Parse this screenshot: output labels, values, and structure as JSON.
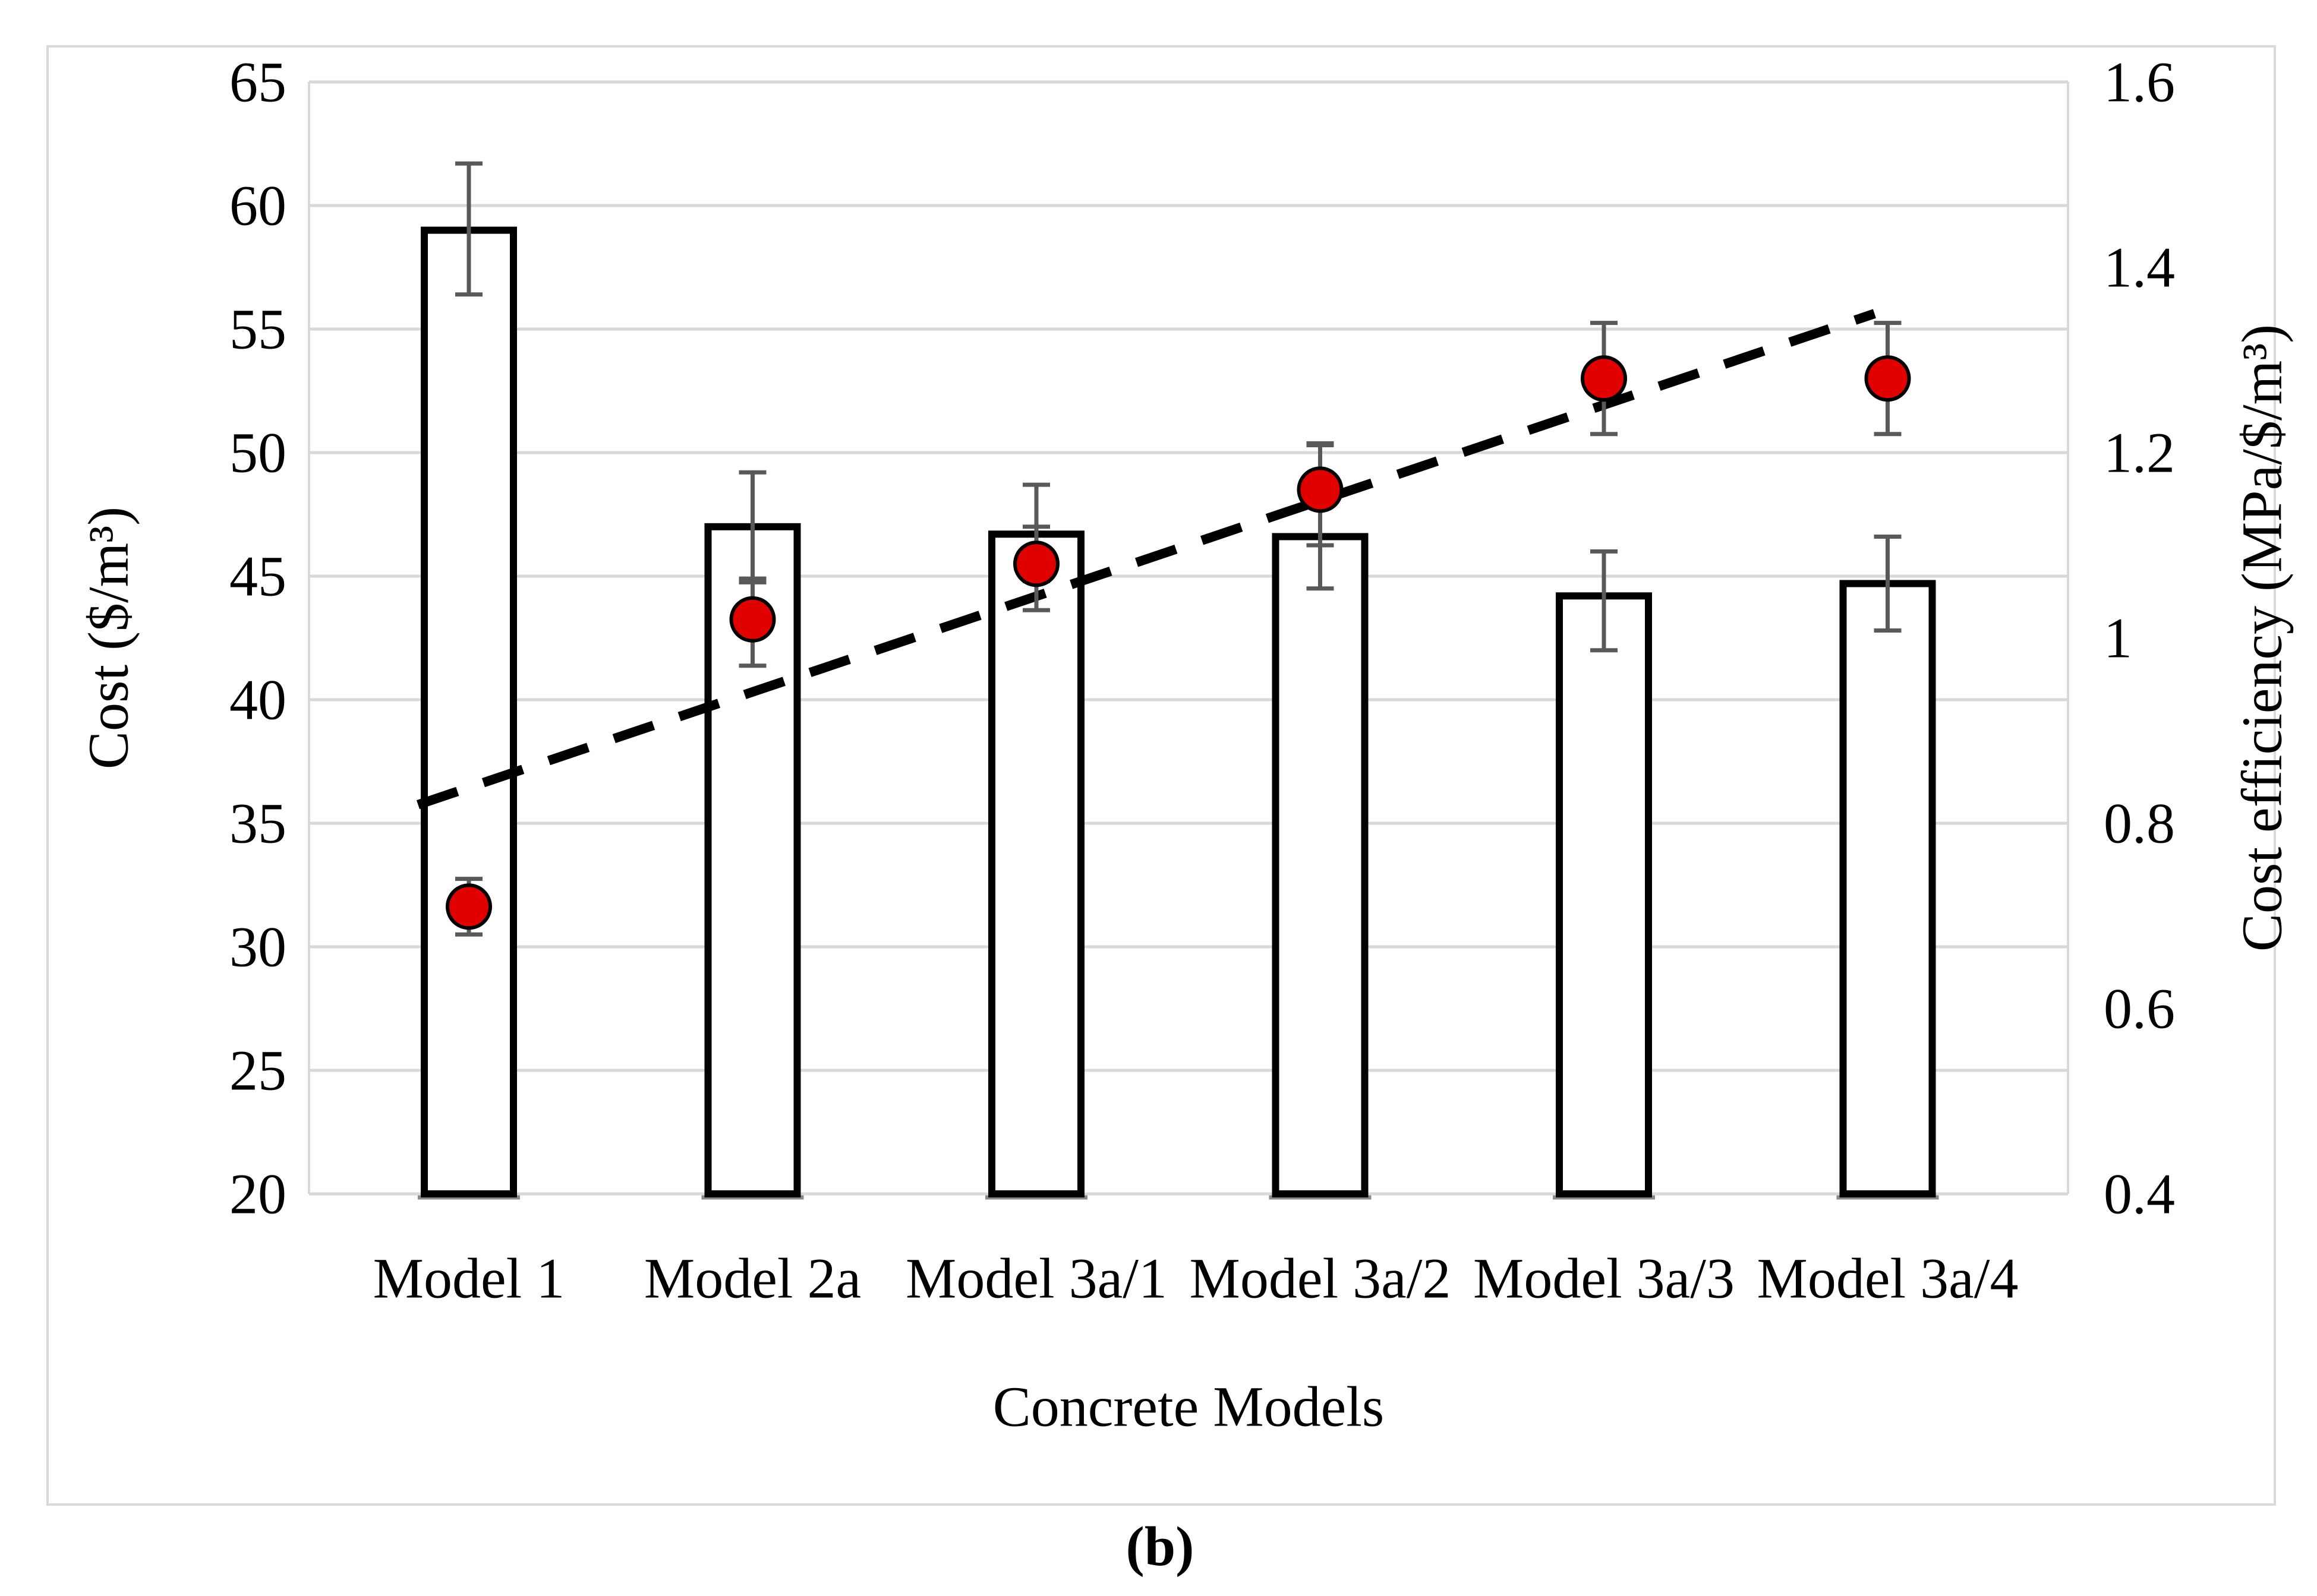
{
  "caption": "(b)",
  "chart_data": {
    "type": "combo-bar-scatter",
    "categories": [
      "Model 1",
      "Model 2a",
      "Model 3a/1",
      "Model 3a/2",
      "Model 3a/3",
      "Model 3a/4"
    ],
    "xlabel": "Concrete Models",
    "left_axis": {
      "label": "Cost ($/m³)",
      "min": 20,
      "max": 65,
      "ticks": [
        65,
        60,
        55,
        50,
        45,
        40,
        35,
        30,
        25,
        20
      ]
    },
    "right_axis": {
      "label": "Cost efficiency (MPa/$/m³)",
      "min": 0.4,
      "max": 1.6,
      "ticks": [
        1.6,
        1.4,
        1.2,
        1,
        0.8,
        0.6,
        0.4
      ]
    },
    "series": [
      {
        "name": "Cost",
        "type": "bar",
        "axis": "left",
        "values": [
          59.0,
          47.0,
          46.7,
          46.6,
          44.2,
          44.7
        ],
        "err_low": [
          56.4,
          44.9,
          44.8,
          44.5,
          42.0,
          42.8
        ],
        "err_high": [
          61.7,
          49.2,
          48.7,
          50.3,
          46.0,
          46.6
        ],
        "fill": "#ffffff",
        "stroke": "#000000"
      },
      {
        "name": "Cost efficiency",
        "type": "scatter",
        "axis": "right",
        "values": [
          0.71,
          1.02,
          1.08,
          1.16,
          1.28,
          1.28
        ],
        "err_low": [
          0.68,
          0.97,
          1.03,
          1.1,
          1.22,
          1.22
        ],
        "err_high": [
          0.74,
          1.06,
          1.12,
          1.21,
          1.34,
          1.34
        ],
        "fill": "#e10000",
        "stroke": "#000000"
      },
      {
        "name": "Trend",
        "type": "dashed-line",
        "axis": "right",
        "x_frac": [
          0.062,
          0.89
        ],
        "values": [
          0.82,
          1.35
        ],
        "stroke": "#000000"
      }
    ],
    "grid": true,
    "legend": "none",
    "colors": {
      "gridline": "#d9d9d9",
      "axis_line": "#d9d9d9",
      "base_segment": "#8a8a8a",
      "error_bar": "#595959",
      "marker_red": "#e10000",
      "text": "#000000",
      "border": "#d9d9d9"
    }
  }
}
